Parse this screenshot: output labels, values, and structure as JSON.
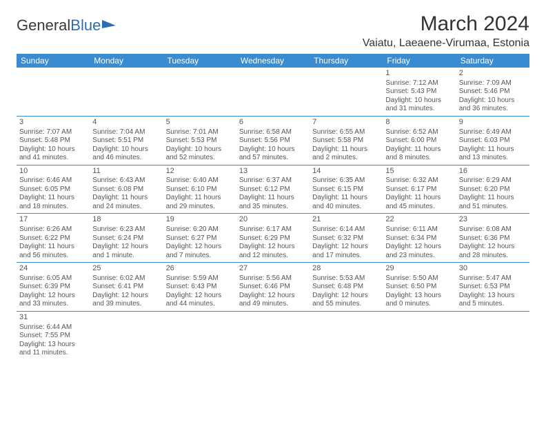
{
  "logo": {
    "part1": "General",
    "part2": "Blue"
  },
  "title": "March 2024",
  "location": "Vaiatu, Laeaene-Virumaa, Estonia",
  "colors": {
    "header_bg": "#3b8bd0",
    "header_text": "#ffffff",
    "rule": "#3b8bd0",
    "text": "#555555"
  },
  "dow": [
    "Sunday",
    "Monday",
    "Tuesday",
    "Wednesday",
    "Thursday",
    "Friday",
    "Saturday"
  ],
  "weeks": [
    [
      null,
      null,
      null,
      null,
      null,
      {
        "n": "1",
        "sr": "Sunrise: 7:12 AM",
        "ss": "Sunset: 5:43 PM",
        "d1": "Daylight: 10 hours",
        "d2": "and 31 minutes."
      },
      {
        "n": "2",
        "sr": "Sunrise: 7:09 AM",
        "ss": "Sunset: 5:46 PM",
        "d1": "Daylight: 10 hours",
        "d2": "and 36 minutes."
      }
    ],
    [
      {
        "n": "3",
        "sr": "Sunrise: 7:07 AM",
        "ss": "Sunset: 5:48 PM",
        "d1": "Daylight: 10 hours",
        "d2": "and 41 minutes."
      },
      {
        "n": "4",
        "sr": "Sunrise: 7:04 AM",
        "ss": "Sunset: 5:51 PM",
        "d1": "Daylight: 10 hours",
        "d2": "and 46 minutes."
      },
      {
        "n": "5",
        "sr": "Sunrise: 7:01 AM",
        "ss": "Sunset: 5:53 PM",
        "d1": "Daylight: 10 hours",
        "d2": "and 52 minutes."
      },
      {
        "n": "6",
        "sr": "Sunrise: 6:58 AM",
        "ss": "Sunset: 5:56 PM",
        "d1": "Daylight: 10 hours",
        "d2": "and 57 minutes."
      },
      {
        "n": "7",
        "sr": "Sunrise: 6:55 AM",
        "ss": "Sunset: 5:58 PM",
        "d1": "Daylight: 11 hours",
        "d2": "and 2 minutes."
      },
      {
        "n": "8",
        "sr": "Sunrise: 6:52 AM",
        "ss": "Sunset: 6:00 PM",
        "d1": "Daylight: 11 hours",
        "d2": "and 8 minutes."
      },
      {
        "n": "9",
        "sr": "Sunrise: 6:49 AM",
        "ss": "Sunset: 6:03 PM",
        "d1": "Daylight: 11 hours",
        "d2": "and 13 minutes."
      }
    ],
    [
      {
        "n": "10",
        "sr": "Sunrise: 6:46 AM",
        "ss": "Sunset: 6:05 PM",
        "d1": "Daylight: 11 hours",
        "d2": "and 18 minutes."
      },
      {
        "n": "11",
        "sr": "Sunrise: 6:43 AM",
        "ss": "Sunset: 6:08 PM",
        "d1": "Daylight: 11 hours",
        "d2": "and 24 minutes."
      },
      {
        "n": "12",
        "sr": "Sunrise: 6:40 AM",
        "ss": "Sunset: 6:10 PM",
        "d1": "Daylight: 11 hours",
        "d2": "and 29 minutes."
      },
      {
        "n": "13",
        "sr": "Sunrise: 6:37 AM",
        "ss": "Sunset: 6:12 PM",
        "d1": "Daylight: 11 hours",
        "d2": "and 35 minutes."
      },
      {
        "n": "14",
        "sr": "Sunrise: 6:35 AM",
        "ss": "Sunset: 6:15 PM",
        "d1": "Daylight: 11 hours",
        "d2": "and 40 minutes."
      },
      {
        "n": "15",
        "sr": "Sunrise: 6:32 AM",
        "ss": "Sunset: 6:17 PM",
        "d1": "Daylight: 11 hours",
        "d2": "and 45 minutes."
      },
      {
        "n": "16",
        "sr": "Sunrise: 6:29 AM",
        "ss": "Sunset: 6:20 PM",
        "d1": "Daylight: 11 hours",
        "d2": "and 51 minutes."
      }
    ],
    [
      {
        "n": "17",
        "sr": "Sunrise: 6:26 AM",
        "ss": "Sunset: 6:22 PM",
        "d1": "Daylight: 11 hours",
        "d2": "and 56 minutes."
      },
      {
        "n": "18",
        "sr": "Sunrise: 6:23 AM",
        "ss": "Sunset: 6:24 PM",
        "d1": "Daylight: 12 hours",
        "d2": "and 1 minute."
      },
      {
        "n": "19",
        "sr": "Sunrise: 6:20 AM",
        "ss": "Sunset: 6:27 PM",
        "d1": "Daylight: 12 hours",
        "d2": "and 7 minutes."
      },
      {
        "n": "20",
        "sr": "Sunrise: 6:17 AM",
        "ss": "Sunset: 6:29 PM",
        "d1": "Daylight: 12 hours",
        "d2": "and 12 minutes."
      },
      {
        "n": "21",
        "sr": "Sunrise: 6:14 AM",
        "ss": "Sunset: 6:32 PM",
        "d1": "Daylight: 12 hours",
        "d2": "and 17 minutes."
      },
      {
        "n": "22",
        "sr": "Sunrise: 6:11 AM",
        "ss": "Sunset: 6:34 PM",
        "d1": "Daylight: 12 hours",
        "d2": "and 23 minutes."
      },
      {
        "n": "23",
        "sr": "Sunrise: 6:08 AM",
        "ss": "Sunset: 6:36 PM",
        "d1": "Daylight: 12 hours",
        "d2": "and 28 minutes."
      }
    ],
    [
      {
        "n": "24",
        "sr": "Sunrise: 6:05 AM",
        "ss": "Sunset: 6:39 PM",
        "d1": "Daylight: 12 hours",
        "d2": "and 33 minutes."
      },
      {
        "n": "25",
        "sr": "Sunrise: 6:02 AM",
        "ss": "Sunset: 6:41 PM",
        "d1": "Daylight: 12 hours",
        "d2": "and 39 minutes."
      },
      {
        "n": "26",
        "sr": "Sunrise: 5:59 AM",
        "ss": "Sunset: 6:43 PM",
        "d1": "Daylight: 12 hours",
        "d2": "and 44 minutes."
      },
      {
        "n": "27",
        "sr": "Sunrise: 5:56 AM",
        "ss": "Sunset: 6:46 PM",
        "d1": "Daylight: 12 hours",
        "d2": "and 49 minutes."
      },
      {
        "n": "28",
        "sr": "Sunrise: 5:53 AM",
        "ss": "Sunset: 6:48 PM",
        "d1": "Daylight: 12 hours",
        "d2": "and 55 minutes."
      },
      {
        "n": "29",
        "sr": "Sunrise: 5:50 AM",
        "ss": "Sunset: 6:50 PM",
        "d1": "Daylight: 13 hours",
        "d2": "and 0 minutes."
      },
      {
        "n": "30",
        "sr": "Sunrise: 5:47 AM",
        "ss": "Sunset: 6:53 PM",
        "d1": "Daylight: 13 hours",
        "d2": "and 5 minutes."
      }
    ],
    [
      {
        "n": "31",
        "sr": "Sunrise: 6:44 AM",
        "ss": "Sunset: 7:55 PM",
        "d1": "Daylight: 13 hours",
        "d2": "and 11 minutes."
      },
      null,
      null,
      null,
      null,
      null,
      null
    ]
  ]
}
